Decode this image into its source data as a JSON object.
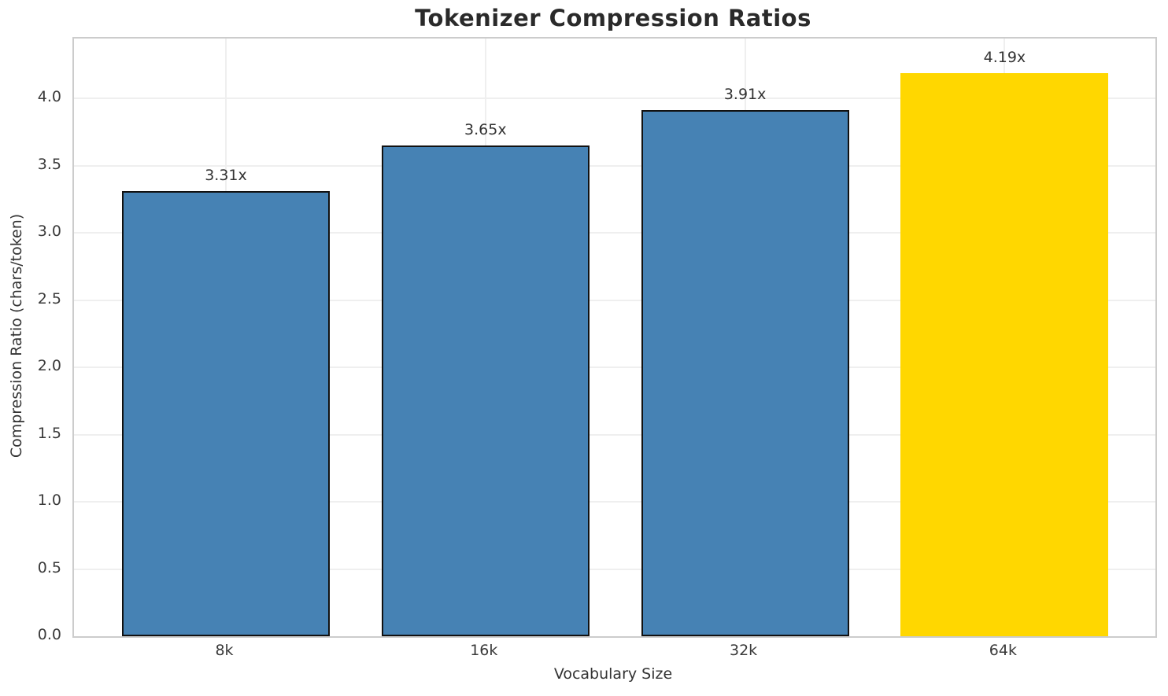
{
  "chart_data": {
    "type": "bar",
    "title": "Tokenizer Compression Ratios",
    "xlabel": "Vocabulary Size",
    "ylabel": "Compression Ratio (chars/token)",
    "categories": [
      "8k",
      "16k",
      "32k",
      "64k"
    ],
    "values": [
      3.31,
      3.65,
      3.91,
      4.19
    ],
    "bar_labels": [
      "3.31x",
      "3.65x",
      "3.91x",
      "4.19x"
    ],
    "bar_colors": [
      "#4682B4",
      "#4682B4",
      "#4682B4",
      "#FFD700"
    ],
    "bar_edge_colors": [
      "#111111",
      "#111111",
      "#111111",
      "none"
    ],
    "highlighted_category": "64k",
    "ylim": [
      0,
      4.445
    ],
    "yticks": [
      0.0,
      0.5,
      1.0,
      1.5,
      2.0,
      2.5,
      3.0,
      3.5,
      4.0
    ],
    "ytick_labels": [
      "0.0",
      "0.5",
      "1.0",
      "1.5",
      "2.0",
      "2.5",
      "3.0",
      "3.5",
      "4.0"
    ],
    "grid": true,
    "grid_axes": "both",
    "legend": "none",
    "colors": {
      "grid": "#efefef",
      "spine": "#cccccc",
      "text": "#333333",
      "title": "#2a2a2a",
      "background": "#ffffff"
    }
  }
}
